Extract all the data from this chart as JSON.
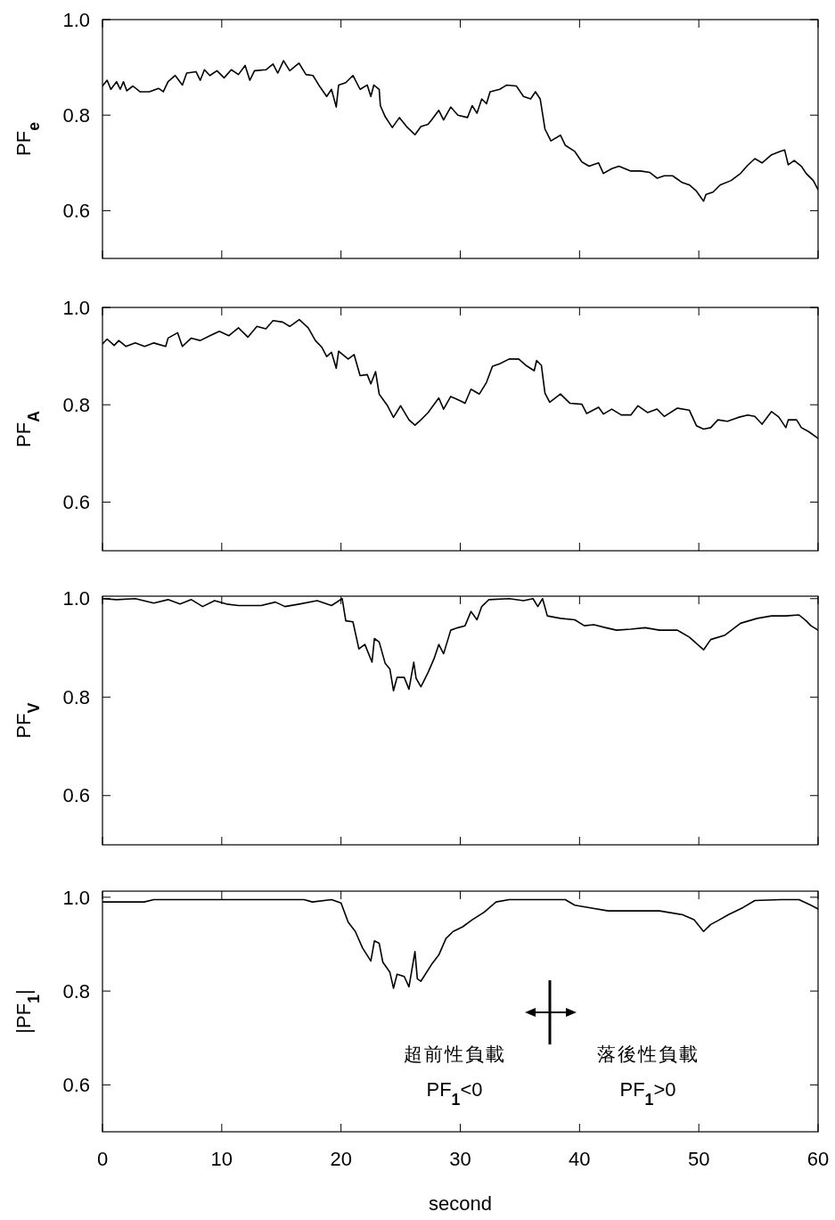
{
  "chart_data": [
    {
      "type": "line",
      "ylabel": "PF$_{e}$",
      "xlim": [
        0,
        60
      ],
      "xticks": [
        0,
        10,
        20,
        30,
        40,
        50,
        60
      ],
      "ylim": [
        0.5,
        1.0
      ],
      "yticks": [
        {
          "value": 0.6,
          "label": "0.6"
        },
        {
          "value": 0.8,
          "label": "0.8"
        },
        {
          "value": 1,
          "label": "1.0"
        }
      ],
      "tick_labels": "y",
      "series": [
        {
          "color": "#000000",
          "x": [
            0,
            0.39,
            0.7,
            1.18,
            1.49,
            1.76,
            2.04,
            2.55,
            3.14,
            3.92,
            4.7,
            5.1,
            5.5,
            6.1,
            6.7,
            7.06,
            7.84,
            8.2,
            8.55,
            9.0,
            9.6,
            10.2,
            10.8,
            11.4,
            11.96,
            12.35,
            12.75,
            13.7,
            14.3,
            14.7,
            15.18,
            15.7,
            16.47,
            17.06,
            17.65,
            18.24,
            18.8,
            19.2,
            19.6,
            19.8,
            20.4,
            21.0,
            21.6,
            22.2,
            22.5,
            22.75,
            23.2,
            23.3,
            23.7,
            24.3,
            24.9,
            25.5,
            26.2,
            26.7,
            27.3,
            27.6,
            28.2,
            28.6,
            29.2,
            29.8,
            30.6,
            31.0,
            31.4,
            31.8,
            32.2,
            32.5,
            33.3,
            33.9,
            34.7,
            35.3,
            35.9,
            36.3,
            36.7,
            37.1,
            37.6,
            38.4,
            38.8,
            39.6,
            40.2,
            40.8,
            41.6,
            42.0,
            42.7,
            43.3,
            44.3,
            45.1,
            45.9,
            46.5,
            47.1,
            47.8,
            48.6,
            49.2,
            49.8,
            50.4,
            50.6,
            51.2,
            51.8,
            52.7,
            53.5,
            54.1,
            54.7,
            55.3,
            56.1,
            56.8,
            57.2,
            57.5,
            58.0,
            58.6,
            59.0,
            59.6,
            60
          ],
          "values": [
            0.861,
            0.873,
            0.854,
            0.87,
            0.854,
            0.87,
            0.851,
            0.861,
            0.849,
            0.849,
            0.856,
            0.849,
            0.87,
            0.883,
            0.863,
            0.888,
            0.891,
            0.873,
            0.895,
            0.883,
            0.893,
            0.878,
            0.895,
            0.885,
            0.904,
            0.873,
            0.893,
            0.895,
            0.907,
            0.888,
            0.914,
            0.893,
            0.909,
            0.885,
            0.883,
            0.859,
            0.839,
            0.854,
            0.817,
            0.863,
            0.868,
            0.883,
            0.854,
            0.863,
            0.839,
            0.863,
            0.854,
            0.82,
            0.797,
            0.774,
            0.795,
            0.776,
            0.759,
            0.776,
            0.781,
            0.79,
            0.81,
            0.79,
            0.817,
            0.8,
            0.795,
            0.82,
            0.804,
            0.834,
            0.824,
            0.849,
            0.854,
            0.863,
            0.861,
            0.839,
            0.834,
            0.849,
            0.834,
            0.771,
            0.746,
            0.758,
            0.737,
            0.724,
            0.702,
            0.693,
            0.7,
            0.678,
            0.688,
            0.693,
            0.683,
            0.683,
            0.68,
            0.668,
            0.673,
            0.673,
            0.659,
            0.654,
            0.641,
            0.62,
            0.634,
            0.639,
            0.654,
            0.663,
            0.678,
            0.695,
            0.709,
            0.7,
            0.717,
            0.724,
            0.727,
            0.696,
            0.705,
            0.693,
            0.678,
            0.663,
            0.644
          ]
        }
      ]
    },
    {
      "type": "line",
      "ylabel": "PF$_{A}$",
      "xlim": [
        0,
        60
      ],
      "xticks": [
        0,
        10,
        20,
        30,
        40,
        50,
        60
      ],
      "ylim": [
        0.5,
        1.0
      ],
      "yticks": [
        {
          "value": 0.6,
          "label": "0.6"
        },
        {
          "value": 0.8,
          "label": "0.8"
        },
        {
          "value": 1,
          "label": "1.0"
        }
      ],
      "tick_labels": "y",
      "series": [
        {
          "color": "#000000",
          "x": [
            0,
            0.39,
            0.98,
            1.37,
            1.96,
            2.75,
            3.53,
            4.31,
            5.3,
            5.5,
            6.3,
            6.7,
            7.45,
            8.2,
            9.0,
            9.8,
            10.6,
            11.4,
            12.2,
            12.95,
            13.7,
            14.3,
            15.1,
            15.7,
            16.5,
            17.25,
            17.85,
            18.4,
            18.8,
            19.2,
            19.6,
            19.8,
            20.6,
            21.1,
            21.6,
            22.2,
            22.5,
            22.9,
            23.2,
            23.9,
            24.4,
            25.0,
            25.7,
            26.2,
            26.7,
            27.3,
            28.2,
            28.6,
            29.2,
            30.0,
            30.4,
            30.9,
            31.6,
            32.2,
            32.7,
            33.3,
            34.1,
            34.9,
            35.5,
            36.2,
            36.4,
            36.8,
            37.1,
            37.5,
            38.4,
            39.2,
            40.2,
            40.6,
            41.6,
            42.0,
            42.7,
            43.5,
            44.3,
            44.9,
            45.7,
            46.5,
            47.1,
            48.2,
            49.2,
            49.8,
            50.4,
            51.0,
            51.6,
            52.4,
            53.3,
            54.1,
            54.7,
            55.3,
            56.1,
            56.7,
            57.3,
            57.5,
            58.2,
            58.6,
            59.2,
            60
          ],
          "values": [
            0.925,
            0.935,
            0.922,
            0.932,
            0.92,
            0.927,
            0.92,
            0.927,
            0.92,
            0.937,
            0.948,
            0.92,
            0.937,
            0.932,
            0.942,
            0.951,
            0.942,
            0.958,
            0.939,
            0.961,
            0.956,
            0.973,
            0.97,
            0.961,
            0.975,
            0.958,
            0.932,
            0.918,
            0.899,
            0.908,
            0.875,
            0.91,
            0.894,
            0.903,
            0.86,
            0.862,
            0.843,
            0.868,
            0.822,
            0.798,
            0.774,
            0.798,
            0.769,
            0.758,
            0.769,
            0.784,
            0.814,
            0.791,
            0.817,
            0.808,
            0.803,
            0.832,
            0.822,
            0.846,
            0.879,
            0.884,
            0.894,
            0.894,
            0.881,
            0.87,
            0.891,
            0.881,
            0.824,
            0.805,
            0.822,
            0.803,
            0.801,
            0.782,
            0.795,
            0.781,
            0.791,
            0.779,
            0.779,
            0.798,
            0.784,
            0.791,
            0.776,
            0.793,
            0.789,
            0.757,
            0.75,
            0.753,
            0.769,
            0.766,
            0.774,
            0.779,
            0.776,
            0.76,
            0.786,
            0.775,
            0.753,
            0.769,
            0.769,
            0.753,
            0.745,
            0.731
          ]
        }
      ]
    },
    {
      "type": "line",
      "ylabel": "PF$_{V}$",
      "xlim": [
        0,
        60
      ],
      "xticks": [
        0,
        10,
        20,
        30,
        40,
        50,
        60
      ],
      "ylim": [
        0.5,
        1.005
      ],
      "yticks": [
        {
          "value": 0.6,
          "label": "0.6"
        },
        {
          "value": 0.8,
          "label": "0.8"
        },
        {
          "value": 1,
          "label": "1.0"
        }
      ],
      "tick_labels": "y",
      "series": [
        {
          "color": "#000000",
          "x": [
            0,
            1.18,
            2.75,
            4.3,
            5.5,
            6.5,
            7.45,
            8.4,
            9.4,
            10.4,
            11.4,
            13.3,
            14.5,
            15.3,
            16.5,
            18.0,
            19.2,
            20.1,
            20.4,
            21.0,
            21.5,
            22.0,
            22.6,
            22.8,
            23.2,
            23.7,
            24.1,
            24.4,
            24.7,
            25.3,
            25.7,
            26.1,
            26.3,
            26.7,
            27.3,
            27.8,
            28.2,
            28.6,
            29.2,
            29.8,
            30.4,
            30.9,
            31.4,
            31.8,
            32.4,
            34.1,
            35.3,
            36.1,
            36.5,
            36.9,
            37.3,
            38.4,
            39.6,
            40.4,
            41.2,
            42.2,
            43.1,
            44.3,
            45.5,
            46.7,
            48.2,
            49.2,
            50.4,
            51.0,
            52.2,
            53.5,
            54.9,
            56.1,
            57.3,
            58.4,
            59.0,
            59.4,
            60
          ],
          "values": [
            1.0,
            0.998,
            1.0,
            0.991,
            0.998,
            0.989,
            0.998,
            0.984,
            0.996,
            0.989,
            0.986,
            0.986,
            0.993,
            0.984,
            0.989,
            0.996,
            0.986,
            1.0,
            0.955,
            0.953,
            0.898,
            0.907,
            0.871,
            0.919,
            0.912,
            0.869,
            0.857,
            0.813,
            0.84,
            0.84,
            0.816,
            0.871,
            0.838,
            0.821,
            0.85,
            0.878,
            0.907,
            0.888,
            0.936,
            0.941,
            0.945,
            0.974,
            0.957,
            0.984,
            0.998,
            1.0,
            0.996,
            1.0,
            0.984,
            1.0,
            0.965,
            0.96,
            0.957,
            0.945,
            0.947,
            0.941,
            0.936,
            0.938,
            0.941,
            0.936,
            0.936,
            0.922,
            0.896,
            0.917,
            0.926,
            0.95,
            0.96,
            0.965,
            0.965,
            0.967,
            0.955,
            0.945,
            0.936
          ]
        }
      ]
    },
    {
      "type": "line",
      "ylabel": "|PF$_{1}$|",
      "xlabel": "second",
      "xlim": [
        0,
        60
      ],
      "xticks": [
        0,
        10,
        20,
        30,
        40,
        50,
        60
      ],
      "ylim": [
        0.5,
        1.013
      ],
      "yticks": [
        {
          "value": 0.6,
          "label": "0.6"
        },
        {
          "value": 0.8,
          "label": "0.8"
        },
        {
          "value": 1,
          "label": "1.0"
        }
      ],
      "annotations": [
        "超前性負載",
        "PF$_{1}$<0",
        "落後性負載",
        "PF$_{1}$>0"
      ],
      "series": [
        {
          "color": "#000000",
          "x": [
            0,
            3.5,
            4.3,
            5.5,
            16.9,
            17.6,
            19.2,
            20.0,
            20.6,
            21.2,
            21.8,
            22.5,
            22.8,
            23.2,
            23.5,
            24.1,
            24.4,
            24.7,
            25.3,
            25.7,
            26.2,
            26.4,
            26.7,
            27.6,
            28.2,
            28.8,
            29.4,
            30.2,
            31.0,
            32.0,
            33.0,
            34.1,
            38.8,
            39.6,
            40.8,
            42.4,
            44.7,
            46.7,
            48.6,
            49.6,
            50.4,
            51.0,
            51.6,
            52.5,
            53.7,
            54.7,
            56.9,
            58.4,
            59.4,
            60
          ],
          "values": [
            0.99,
            0.99,
            0.995,
            0.995,
            0.995,
            0.99,
            0.995,
            0.988,
            0.947,
            0.927,
            0.892,
            0.864,
            0.907,
            0.902,
            0.862,
            0.84,
            0.806,
            0.836,
            0.831,
            0.809,
            0.884,
            0.826,
            0.821,
            0.857,
            0.877,
            0.912,
            0.927,
            0.937,
            0.952,
            0.968,
            0.99,
            0.995,
            0.995,
            0.983,
            0.978,
            0.971,
            0.971,
            0.971,
            0.963,
            0.952,
            0.927,
            0.942,
            0.95,
            0.963,
            0.978,
            0.993,
            0.995,
            0.995,
            0.983,
            0.975
          ]
        }
      ]
    }
  ]
}
